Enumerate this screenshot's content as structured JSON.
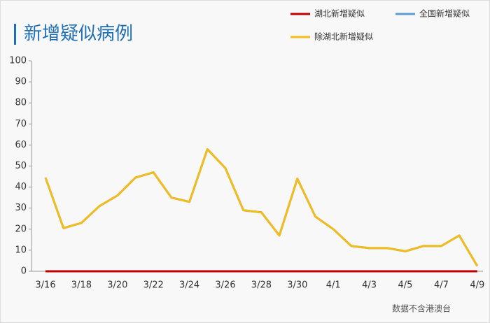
{
  "chart_data": {
    "type": "line",
    "title": "新增疑似病例",
    "categories": [
      "3/16",
      null,
      "3/18",
      null,
      "3/20",
      null,
      "3/22",
      null,
      "3/24",
      null,
      "3/26",
      null,
      "3/28",
      null,
      "3/30",
      null,
      "4/1",
      null,
      "4/3",
      null,
      "4/5",
      null,
      "4/7",
      null,
      "4/9"
    ],
    "series": [
      {
        "name": "全国新增疑似",
        "color": "#5b9bd5",
        "values": [
          44.5,
          20.5,
          23,
          31,
          36,
          44.5,
          47,
          35,
          33,
          58,
          49,
          29,
          28,
          17,
          44,
          26,
          20,
          12,
          11,
          11,
          9.5,
          12,
          12,
          17,
          2.5
        ]
      },
      {
        "name": "除湖北新增疑似",
        "color": "#f2bc1b",
        "values": [
          44.5,
          20.5,
          23,
          31,
          36,
          44.5,
          47,
          35,
          33,
          58,
          49,
          29,
          28,
          17,
          44,
          26,
          20,
          12,
          11,
          11,
          9.5,
          12,
          12,
          17,
          2.5
        ]
      },
      {
        "name": "湖北新增疑似",
        "color": "#c00000",
        "values": [
          0,
          0,
          0,
          0,
          0,
          0,
          0,
          0,
          0,
          0,
          0,
          0,
          0,
          0,
          0,
          0,
          0,
          0,
          0,
          0,
          0,
          0,
          0,
          0,
          0
        ]
      }
    ],
    "ylim": [
      0,
      100
    ],
    "yticks": [
      0,
      10,
      20,
      30,
      40,
      50,
      60,
      70,
      80,
      90,
      100
    ],
    "note": "数据不含港澳台"
  }
}
